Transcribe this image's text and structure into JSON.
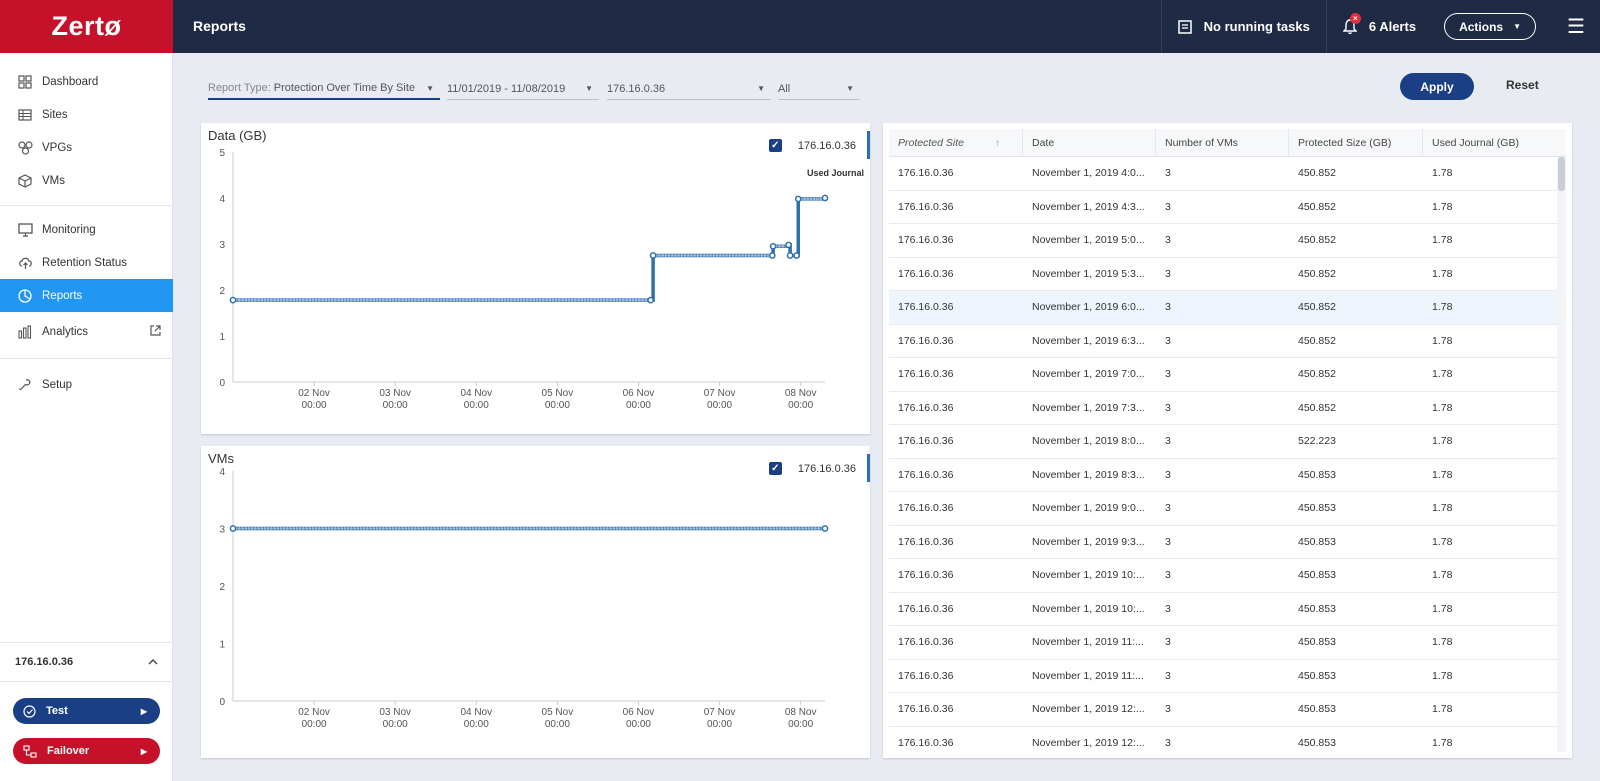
{
  "app": {
    "logo_text": "Zertø",
    "page_title": "Reports"
  },
  "topbar": {
    "tasks_label": "No running tasks",
    "alerts_label": "6 Alerts",
    "alerts_badge": "×",
    "actions_label": "Actions"
  },
  "sidebar": {
    "items": [
      {
        "label": "Dashboard",
        "icon": "dashboard-icon"
      },
      {
        "label": "Sites",
        "icon": "sites-icon"
      },
      {
        "label": "VPGs",
        "icon": "vpgs-icon"
      },
      {
        "label": "VMs",
        "icon": "vms-icon"
      },
      {
        "label": "Monitoring",
        "icon": "monitor-icon"
      },
      {
        "label": "Retention Status",
        "icon": "cloud-upload-icon"
      },
      {
        "label": "Reports",
        "icon": "pie-chart-icon",
        "active": true
      },
      {
        "label": "Analytics",
        "icon": "bar-chart-icon"
      },
      {
        "label": "Setup",
        "icon": "wrench-icon"
      }
    ],
    "site": "176.16.0.36",
    "test_label": "Test",
    "failover_label": "Failover"
  },
  "filters": {
    "report_type_prefix": "Report Type:",
    "report_type": "Protection Over Time By Site",
    "date_range": "11/01/2019 - 11/08/2019",
    "site": "176.16.0.36",
    "vpg": "All",
    "apply_label": "Apply",
    "reset_label": "Reset"
  },
  "colors": {
    "brand_red": "#c5112a",
    "navy": "#1f2a44",
    "accent_blue": "#2196f3",
    "series_blue": "#2f6fae"
  },
  "chart_data": [
    {
      "type": "line",
      "title": "Data (GB)",
      "legend": [
        "176.16.0.36"
      ],
      "series_annotation": "Used Journal",
      "ylim": [
        0,
        5
      ],
      "yticks": [
        "5",
        "4",
        "3",
        "2",
        "1",
        "0"
      ],
      "xticks": [
        {
          "line1": "02 Nov",
          "line2": "00:00"
        },
        {
          "line1": "03 Nov",
          "line2": "00:00"
        },
        {
          "line1": "04 Nov",
          "line2": "00:00"
        },
        {
          "line1": "05 Nov",
          "line2": "00:00"
        },
        {
          "line1": "06 Nov",
          "line2": "00:00"
        },
        {
          "line1": "07 Nov",
          "line2": "00:00"
        },
        {
          "line1": "08 Nov",
          "line2": "00:00"
        }
      ],
      "x_range_days": [
        0,
        7.3
      ],
      "series": [
        {
          "name": "176.16.0.36",
          "points": [
            [
              0.0,
              1.78
            ],
            [
              5.15,
              1.78
            ],
            [
              5.18,
              2.75
            ],
            [
              6.65,
              2.75
            ],
            [
              6.66,
              2.95
            ],
            [
              6.85,
              2.98
            ],
            [
              6.87,
              2.75
            ],
            [
              6.95,
              2.75
            ],
            [
              6.97,
              3.98
            ],
            [
              7.3,
              4.0
            ]
          ]
        }
      ]
    },
    {
      "type": "line",
      "title": "VMs",
      "legend": [
        "176.16.0.36"
      ],
      "ylim": [
        0,
        4
      ],
      "yticks": [
        "4",
        "3",
        "2",
        "1",
        "0"
      ],
      "xticks": [
        {
          "line1": "02 Nov",
          "line2": "00:00"
        },
        {
          "line1": "03 Nov",
          "line2": "00:00"
        },
        {
          "line1": "04 Nov",
          "line2": "00:00"
        },
        {
          "line1": "05 Nov",
          "line2": "00:00"
        },
        {
          "line1": "06 Nov",
          "line2": "00:00"
        },
        {
          "line1": "07 Nov",
          "line2": "00:00"
        },
        {
          "line1": "08 Nov",
          "line2": "00:00"
        }
      ],
      "x_range_days": [
        0,
        7.3
      ],
      "series": [
        {
          "name": "176.16.0.36",
          "points": [
            [
              0.0,
              3
            ],
            [
              7.3,
              3
            ]
          ]
        }
      ]
    }
  ],
  "table": {
    "headers": [
      "Protected Site",
      "Date",
      "Number of VMs",
      "Protected Size (GB)",
      "Used Journal (GB)"
    ],
    "sort_icon": "↑",
    "rows": [
      [
        "176.16.0.36",
        "November 1, 2019 4:0...",
        "3",
        "450.852",
        "1.78"
      ],
      [
        "176.16.0.36",
        "November 1, 2019 4:3...",
        "3",
        "450.852",
        "1.78"
      ],
      [
        "176.16.0.36",
        "November 1, 2019 5:0...",
        "3",
        "450.852",
        "1.78"
      ],
      [
        "176.16.0.36",
        "November 1, 2019 5:3...",
        "3",
        "450.852",
        "1.78"
      ],
      [
        "176.16.0.36",
        "November 1, 2019 6:0...",
        "3",
        "450.852",
        "1.78"
      ],
      [
        "176.16.0.36",
        "November 1, 2019 6:3...",
        "3",
        "450.852",
        "1.78"
      ],
      [
        "176.16.0.36",
        "November 1, 2019 7:0...",
        "3",
        "450.852",
        "1.78"
      ],
      [
        "176.16.0.36",
        "November 1, 2019 7:3...",
        "3",
        "450.852",
        "1.78"
      ],
      [
        "176.16.0.36",
        "November 1, 2019 8:0...",
        "3",
        "522.223",
        "1.78"
      ],
      [
        "176.16.0.36",
        "November 1, 2019 8:3...",
        "3",
        "450.853",
        "1.78"
      ],
      [
        "176.16.0.36",
        "November 1, 2019 9:0...",
        "3",
        "450.853",
        "1.78"
      ],
      [
        "176.16.0.36",
        "November 1, 2019 9:3...",
        "3",
        "450.853",
        "1.78"
      ],
      [
        "176.16.0.36",
        "November 1, 2019 10:...",
        "3",
        "450.853",
        "1.78"
      ],
      [
        "176.16.0.36",
        "November 1, 2019 10:...",
        "3",
        "450.853",
        "1.78"
      ],
      [
        "176.16.0.36",
        "November 1, 2019 11:...",
        "3",
        "450.853",
        "1.78"
      ],
      [
        "176.16.0.36",
        "November 1, 2019 11:...",
        "3",
        "450.853",
        "1.78"
      ],
      [
        "176.16.0.36",
        "November 1, 2019 12:...",
        "3",
        "450.853",
        "1.78"
      ],
      [
        "176.16.0.36",
        "November 1, 2019 12:...",
        "3",
        "450.853",
        "1.78"
      ]
    ]
  }
}
